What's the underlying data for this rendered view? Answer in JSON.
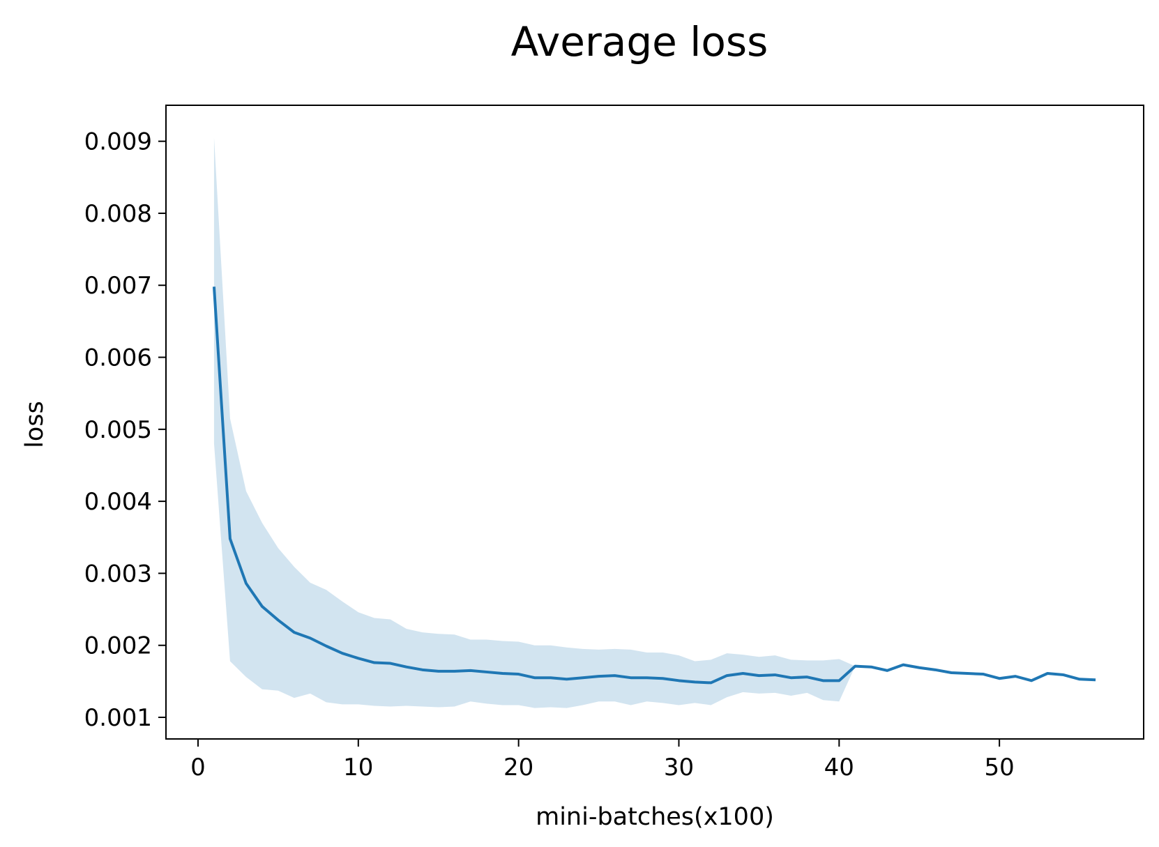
{
  "chart_data": {
    "type": "line",
    "title": "Average loss",
    "xlabel": "mini-batches(x100)",
    "ylabel": "loss",
    "xlim": [
      -2,
      59
    ],
    "ylim": [
      0.0007,
      0.0095
    ],
    "xticks": [
      0,
      10,
      20,
      30,
      40,
      50
    ],
    "xtick_labels": [
      "0",
      "10",
      "20",
      "30",
      "40",
      "50"
    ],
    "yticks": [
      0.001,
      0.002,
      0.003,
      0.004,
      0.005,
      0.006,
      0.007,
      0.008,
      0.009
    ],
    "ytick_labels": [
      "0.001",
      "0.002",
      "0.003",
      "0.004",
      "0.005",
      "0.006",
      "0.007",
      "0.008",
      "0.009"
    ],
    "grid": false,
    "legend": "none",
    "series": [
      {
        "color": "#1f77b4",
        "x": [
          1,
          2,
          3,
          4,
          5,
          6,
          7,
          8,
          9,
          10,
          11,
          12,
          13,
          14,
          15,
          16,
          17,
          18,
          19,
          20,
          21,
          22,
          23,
          24,
          25,
          26,
          27,
          28,
          29,
          30,
          31,
          32,
          33,
          34,
          35,
          36,
          37,
          38,
          39,
          40,
          41,
          42,
          43,
          44,
          45,
          46,
          47,
          48,
          49,
          50,
          51,
          52,
          53,
          54,
          55,
          56
        ],
        "values": [
          0.00698,
          0.00348,
          0.00286,
          0.00254,
          0.00235,
          0.00218,
          0.0021,
          0.00199,
          0.00189,
          0.00182,
          0.00176,
          0.00175,
          0.0017,
          0.00166,
          0.00164,
          0.00164,
          0.00165,
          0.00163,
          0.00161,
          0.0016,
          0.00155,
          0.00155,
          0.00153,
          0.00155,
          0.00157,
          0.00158,
          0.00155,
          0.00155,
          0.00154,
          0.00151,
          0.00149,
          0.00148,
          0.00158,
          0.00161,
          0.00158,
          0.00159,
          0.00155,
          0.00156,
          0.00151,
          0.00151,
          0.00171,
          0.0017,
          0.00165,
          0.00173,
          0.00169,
          0.00166,
          0.00162,
          0.00161,
          0.0016,
          0.00154,
          0.00157,
          0.00151,
          0.00161,
          0.00159,
          0.00153,
          0.00152
        ]
      }
    ],
    "band": {
      "color": "#1f77b4",
      "opacity": 0.2,
      "x": [
        1,
        2,
        3,
        4,
        5,
        6,
        7,
        8,
        9,
        10,
        11,
        12,
        13,
        14,
        15,
        16,
        17,
        18,
        19,
        20,
        21,
        22,
        23,
        24,
        25,
        26,
        27,
        28,
        29,
        30,
        31,
        32,
        33,
        34,
        35,
        36,
        37,
        38,
        39,
        40,
        41
      ],
      "upper": [
        0.00905,
        0.00515,
        0.00414,
        0.0037,
        0.00335,
        0.00309,
        0.00287,
        0.00277,
        0.00261,
        0.00246,
        0.00238,
        0.00236,
        0.00223,
        0.00218,
        0.00216,
        0.00215,
        0.00208,
        0.00208,
        0.00206,
        0.00205,
        0.002,
        0.002,
        0.00197,
        0.00195,
        0.00194,
        0.00195,
        0.00194,
        0.0019,
        0.0019,
        0.00186,
        0.00178,
        0.0018,
        0.00189,
        0.00187,
        0.00184,
        0.00186,
        0.0018,
        0.00179,
        0.00179,
        0.00181,
        0.00171
      ],
      "lower": [
        0.0048,
        0.00178,
        0.00156,
        0.00139,
        0.00137,
        0.00127,
        0.00133,
        0.00121,
        0.00118,
        0.00118,
        0.00116,
        0.00115,
        0.00116,
        0.00115,
        0.00114,
        0.00115,
        0.00122,
        0.00119,
        0.00117,
        0.00117,
        0.00113,
        0.00114,
        0.00113,
        0.00117,
        0.00122,
        0.00122,
        0.00117,
        0.00122,
        0.0012,
        0.00117,
        0.0012,
        0.00117,
        0.00128,
        0.00135,
        0.00133,
        0.00134,
        0.0013,
        0.00134,
        0.00124,
        0.00122,
        0.00171
      ]
    }
  }
}
